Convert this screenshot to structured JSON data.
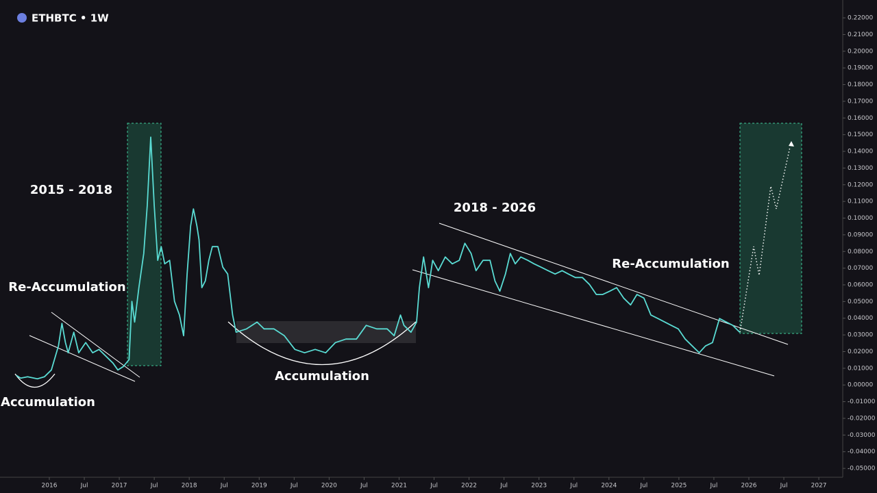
{
  "chart_data": {
    "type": "line",
    "title": "ETHBTC • 1W",
    "annotations": [
      "2015 - 2018",
      "2018 - 2026",
      "Re-Accumulation",
      "Re-Accumulation",
      "Accumulation",
      "Accumulation"
    ],
    "xlim": [
      2015.295,
      2027.342
    ],
    "xticks": [
      2016,
      {
        "value": 2016.5,
        "label": "Jul"
      },
      2017,
      {
        "value": 2017.5,
        "label": "Jul"
      },
      2018,
      {
        "value": 2018.5,
        "label": "Jul"
      },
      2019,
      {
        "value": 2019.5,
        "label": "Jul"
      },
      2020,
      {
        "value": 2020.5,
        "label": "Jul"
      },
      2021,
      {
        "value": 2021.5,
        "label": "Jul"
      },
      2022,
      {
        "value": 2022.5,
        "label": "Jul"
      },
      2023,
      {
        "value": 2023.5,
        "label": "Jul"
      },
      2024,
      {
        "value": 2024.5,
        "label": "Jul"
      },
      2025,
      {
        "value": 2025.5,
        "label": "Jul"
      },
      2026,
      {
        "value": 2026.5,
        "label": "Jul"
      },
      2027
    ],
    "ylim": [
      -0.0553,
      0.2307
    ],
    "yticks": [
      {
        "value": 0.22,
        "label": "0.22000"
      },
      {
        "value": 0.21,
        "label": "0.21000"
      },
      {
        "value": 0.2,
        "label": "0.20000"
      },
      {
        "value": 0.19,
        "label": "0.19000"
      },
      {
        "value": 0.18,
        "label": "0.18000"
      },
      {
        "value": 0.17,
        "label": "0.17000"
      },
      {
        "value": 0.16,
        "label": "0.16000"
      },
      {
        "value": 0.15,
        "label": "0.15000"
      },
      {
        "value": 0.14,
        "label": "0.14000"
      },
      {
        "value": 0.13,
        "label": "0.13000"
      },
      {
        "value": 0.12,
        "label": "0.12000"
      },
      {
        "value": 0.11,
        "label": "0.11000"
      },
      {
        "value": 0.1,
        "label": "0.10000"
      },
      {
        "value": 0.09,
        "label": "0.09000"
      },
      {
        "value": 0.08,
        "label": "0.08000"
      },
      {
        "value": 0.07,
        "label": "0.07000"
      },
      {
        "value": 0.06,
        "label": "0.06000"
      },
      {
        "value": 0.05,
        "label": "0.05000"
      },
      {
        "value": 0.04,
        "label": "0.04000"
      },
      {
        "value": 0.03,
        "label": "0.03000"
      },
      {
        "value": 0.02,
        "label": "0.02000"
      },
      {
        "value": 0.01,
        "label": "0.01000"
      },
      {
        "value": 0,
        "label": "0.00000"
      },
      {
        "value": -0.01,
        "label": "-0.01000"
      },
      {
        "value": -0.02,
        "label": "-0.02000"
      },
      {
        "value": -0.03,
        "label": "-0.03000"
      },
      {
        "value": -0.04,
        "label": "-0.04000"
      },
      {
        "value": -0.05,
        "label": "-0.05000"
      }
    ],
    "series": [
      {
        "color": "#5adcd4",
        "x": [
          2015.53,
          2015.59,
          2015.69,
          2015.83,
          2015.93,
          2016.03,
          2016.13,
          2016.18,
          2016.23,
          2016.27,
          2016.35,
          2016.42,
          2016.52,
          2016.62,
          2016.71,
          2016.81,
          2016.91,
          2016.98,
          2017.06,
          2017.14,
          2017.18,
          2017.22,
          2017.28,
          2017.35,
          2017.4,
          2017.45,
          2017.5,
          2017.55,
          2017.6,
          2017.65,
          2017.72,
          2017.79,
          2017.86,
          2017.92,
          2017.97,
          2018.02,
          2018.06,
          2018.11,
          2018.14,
          2018.18,
          2018.23,
          2018.28,
          2018.33,
          2018.41,
          2018.48,
          2018.55,
          2018.62,
          2018.67,
          2018.82,
          2018.97,
          2019.07,
          2019.21,
          2019.36,
          2019.51,
          2019.65,
          2019.8,
          2019.95,
          2020.09,
          2020.24,
          2020.39,
          2020.53,
          2020.68,
          2020.83,
          2020.93,
          2021.02,
          2021.07,
          2021.17,
          2021.25,
          2021.29,
          2021.35,
          2021.42,
          2021.48,
          2021.56,
          2021.66,
          2021.76,
          2021.86,
          2021.94,
          2022.03,
          2022.1,
          2022.2,
          2022.3,
          2022.37,
          2022.44,
          2022.52,
          2022.59,
          2022.66,
          2022.74,
          2022.84,
          2022.93,
          2023.03,
          2023.13,
          2023.23,
          2023.33,
          2023.42,
          2023.52,
          2023.62,
          2023.72,
          2023.82,
          2023.91,
          2024.01,
          2024.11,
          2024.21,
          2024.31,
          2024.4,
          2024.5,
          2024.6,
          2024.7,
          2024.8,
          2024.89,
          2024.99,
          2025.09,
          2025.19,
          2025.29,
          2025.38,
          2025.48,
          2025.58,
          2025.68,
          2025.77,
          2025.87
        ],
        "values": [
          0.0057,
          0.0041,
          0.0049,
          0.0037,
          0.0049,
          0.009,
          0.0234,
          0.0369,
          0.0254,
          0.0193,
          0.0316,
          0.0193,
          0.0254,
          0.0193,
          0.0213,
          0.0172,
          0.0131,
          0.009,
          0.0111,
          0.0152,
          0.0501,
          0.0377,
          0.0583,
          0.0788,
          0.1075,
          0.1485,
          0.1075,
          0.0747,
          0.0829,
          0.0726,
          0.0747,
          0.0501,
          0.0419,
          0.0295,
          0.0665,
          0.0952,
          0.1055,
          0.0952,
          0.087,
          0.0583,
          0.0624,
          0.0747,
          0.0829,
          0.0829,
          0.0706,
          0.0665,
          0.0419,
          0.0316,
          0.0336,
          0.0377,
          0.0336,
          0.0336,
          0.0295,
          0.0213,
          0.0193,
          0.0213,
          0.0193,
          0.0254,
          0.0275,
          0.0275,
          0.0357,
          0.0336,
          0.0336,
          0.0295,
          0.0419,
          0.0357,
          0.0316,
          0.0377,
          0.0583,
          0.0767,
          0.0583,
          0.0747,
          0.0685,
          0.0767,
          0.0726,
          0.0747,
          0.0849,
          0.0788,
          0.0685,
          0.0747,
          0.0747,
          0.0624,
          0.0562,
          0.0665,
          0.0788,
          0.0726,
          0.0767,
          0.0747,
          0.0726,
          0.0706,
          0.0685,
          0.0665,
          0.0685,
          0.0665,
          0.0644,
          0.0644,
          0.0603,
          0.0542,
          0.0542,
          0.0562,
          0.0583,
          0.0521,
          0.048,
          0.0542,
          0.0521,
          0.0419,
          0.0398,
          0.0377,
          0.0357,
          0.0336,
          0.0275,
          0.0234,
          0.0193,
          0.0234,
          0.0254,
          0.0398,
          0.0377,
          0.0357,
          0.0316
        ]
      }
    ]
  }
}
